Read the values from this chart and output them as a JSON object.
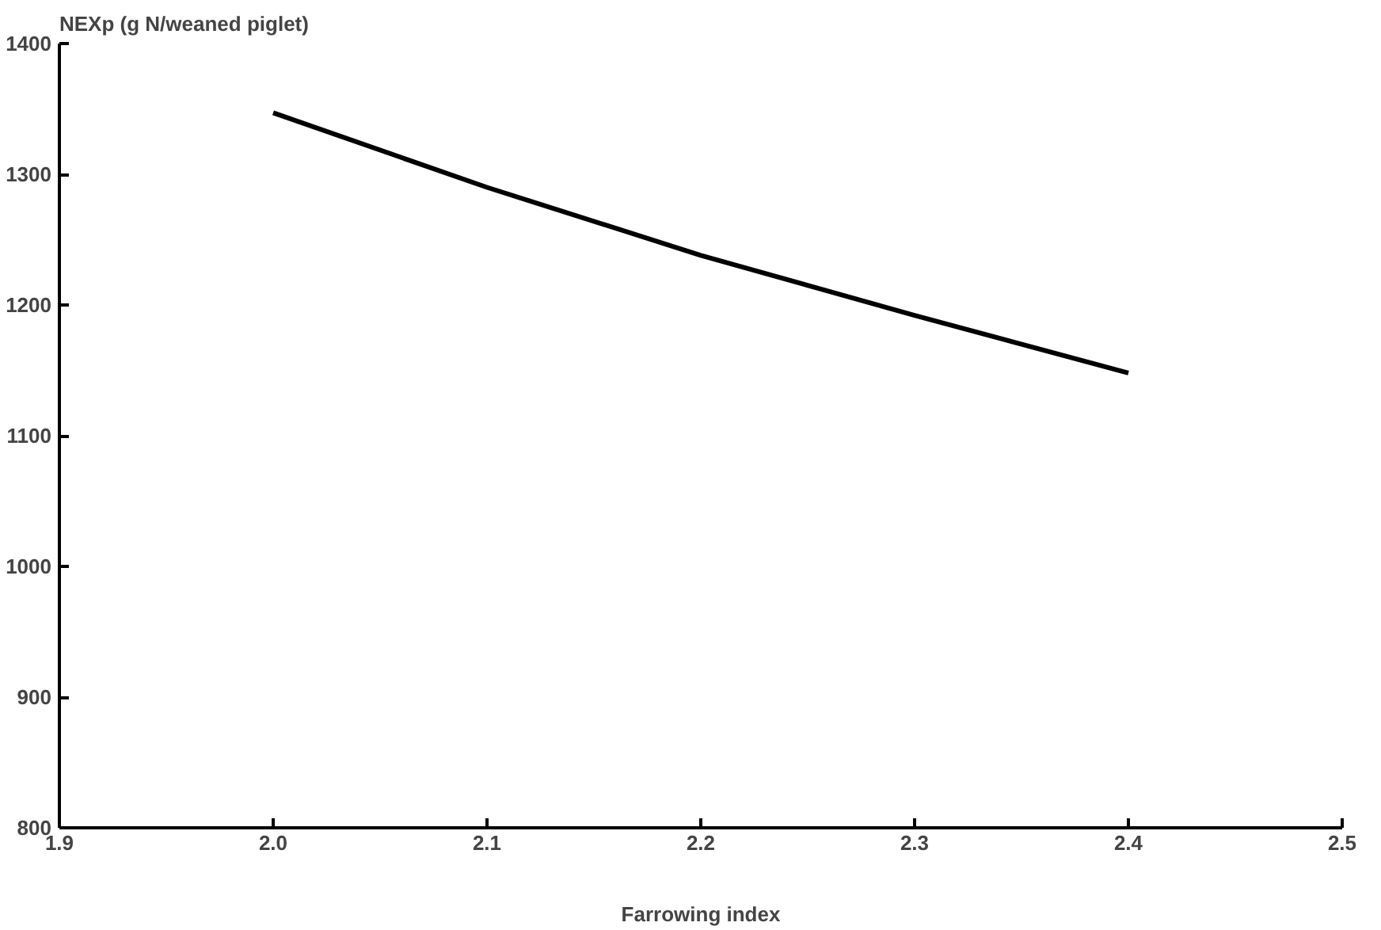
{
  "chart_data": {
    "type": "line",
    "ylabel": "NEXp (g N/weaned piglet)",
    "xlabel": "Farrowing index",
    "x": [
      2.0,
      2.1,
      2.2,
      2.3,
      2.4
    ],
    "series": [
      {
        "color": "#000000",
        "values": [
          1347,
          1290,
          1238,
          1192,
          1148
        ]
      }
    ],
    "xlim": [
      1.9,
      2.5
    ],
    "xticks": [
      {
        "value": 1.9,
        "label": "1.9"
      },
      {
        "value": 2.0,
        "label": "2.0"
      },
      {
        "value": 2.1,
        "label": "2.1"
      },
      {
        "value": 2.2,
        "label": "2.2"
      },
      {
        "value": 2.3,
        "label": "2.3"
      },
      {
        "value": 2.4,
        "label": "2.4"
      },
      {
        "value": 2.5,
        "label": "2.5"
      }
    ],
    "ylim": [
      800,
      1400
    ],
    "yticks": [
      800,
      900,
      1000,
      1100,
      1200,
      1300,
      1400
    ],
    "grid": false,
    "marker": "none",
    "line_style": "solid"
  }
}
